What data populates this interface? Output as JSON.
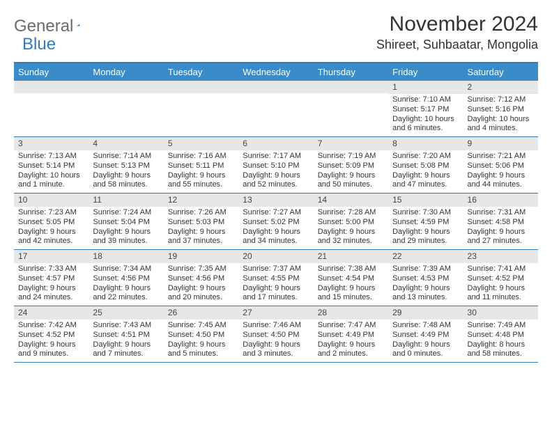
{
  "logo": {
    "text_gray": "General",
    "text_blue": "Blue",
    "triangle_color": "#2f7bbf"
  },
  "title": "November 2024",
  "location": "Shireet, Suhbaatar, Mongolia",
  "colors": {
    "header_bg": "#3b8bc9",
    "border": "#2f7bbf",
    "daynum_bg": "#e7e7e7",
    "text": "#333333",
    "logo_gray": "#6b6b6b"
  },
  "day_headers": [
    "Sunday",
    "Monday",
    "Tuesday",
    "Wednesday",
    "Thursday",
    "Friday",
    "Saturday"
  ],
  "weeks": [
    [
      {
        "num": "",
        "sunrise": "",
        "sunset": "",
        "daylight": ""
      },
      {
        "num": "",
        "sunrise": "",
        "sunset": "",
        "daylight": ""
      },
      {
        "num": "",
        "sunrise": "",
        "sunset": "",
        "daylight": ""
      },
      {
        "num": "",
        "sunrise": "",
        "sunset": "",
        "daylight": ""
      },
      {
        "num": "",
        "sunrise": "",
        "sunset": "",
        "daylight": ""
      },
      {
        "num": "1",
        "sunrise": "Sunrise: 7:10 AM",
        "sunset": "Sunset: 5:17 PM",
        "daylight": "Daylight: 10 hours and 6 minutes."
      },
      {
        "num": "2",
        "sunrise": "Sunrise: 7:12 AM",
        "sunset": "Sunset: 5:16 PM",
        "daylight": "Daylight: 10 hours and 4 minutes."
      }
    ],
    [
      {
        "num": "3",
        "sunrise": "Sunrise: 7:13 AM",
        "sunset": "Sunset: 5:14 PM",
        "daylight": "Daylight: 10 hours and 1 minute."
      },
      {
        "num": "4",
        "sunrise": "Sunrise: 7:14 AM",
        "sunset": "Sunset: 5:13 PM",
        "daylight": "Daylight: 9 hours and 58 minutes."
      },
      {
        "num": "5",
        "sunrise": "Sunrise: 7:16 AM",
        "sunset": "Sunset: 5:11 PM",
        "daylight": "Daylight: 9 hours and 55 minutes."
      },
      {
        "num": "6",
        "sunrise": "Sunrise: 7:17 AM",
        "sunset": "Sunset: 5:10 PM",
        "daylight": "Daylight: 9 hours and 52 minutes."
      },
      {
        "num": "7",
        "sunrise": "Sunrise: 7:19 AM",
        "sunset": "Sunset: 5:09 PM",
        "daylight": "Daylight: 9 hours and 50 minutes."
      },
      {
        "num": "8",
        "sunrise": "Sunrise: 7:20 AM",
        "sunset": "Sunset: 5:08 PM",
        "daylight": "Daylight: 9 hours and 47 minutes."
      },
      {
        "num": "9",
        "sunrise": "Sunrise: 7:21 AM",
        "sunset": "Sunset: 5:06 PM",
        "daylight": "Daylight: 9 hours and 44 minutes."
      }
    ],
    [
      {
        "num": "10",
        "sunrise": "Sunrise: 7:23 AM",
        "sunset": "Sunset: 5:05 PM",
        "daylight": "Daylight: 9 hours and 42 minutes."
      },
      {
        "num": "11",
        "sunrise": "Sunrise: 7:24 AM",
        "sunset": "Sunset: 5:04 PM",
        "daylight": "Daylight: 9 hours and 39 minutes."
      },
      {
        "num": "12",
        "sunrise": "Sunrise: 7:26 AM",
        "sunset": "Sunset: 5:03 PM",
        "daylight": "Daylight: 9 hours and 37 minutes."
      },
      {
        "num": "13",
        "sunrise": "Sunrise: 7:27 AM",
        "sunset": "Sunset: 5:02 PM",
        "daylight": "Daylight: 9 hours and 34 minutes."
      },
      {
        "num": "14",
        "sunrise": "Sunrise: 7:28 AM",
        "sunset": "Sunset: 5:00 PM",
        "daylight": "Daylight: 9 hours and 32 minutes."
      },
      {
        "num": "15",
        "sunrise": "Sunrise: 7:30 AM",
        "sunset": "Sunset: 4:59 PM",
        "daylight": "Daylight: 9 hours and 29 minutes."
      },
      {
        "num": "16",
        "sunrise": "Sunrise: 7:31 AM",
        "sunset": "Sunset: 4:58 PM",
        "daylight": "Daylight: 9 hours and 27 minutes."
      }
    ],
    [
      {
        "num": "17",
        "sunrise": "Sunrise: 7:33 AM",
        "sunset": "Sunset: 4:57 PM",
        "daylight": "Daylight: 9 hours and 24 minutes."
      },
      {
        "num": "18",
        "sunrise": "Sunrise: 7:34 AM",
        "sunset": "Sunset: 4:56 PM",
        "daylight": "Daylight: 9 hours and 22 minutes."
      },
      {
        "num": "19",
        "sunrise": "Sunrise: 7:35 AM",
        "sunset": "Sunset: 4:56 PM",
        "daylight": "Daylight: 9 hours and 20 minutes."
      },
      {
        "num": "20",
        "sunrise": "Sunrise: 7:37 AM",
        "sunset": "Sunset: 4:55 PM",
        "daylight": "Daylight: 9 hours and 17 minutes."
      },
      {
        "num": "21",
        "sunrise": "Sunrise: 7:38 AM",
        "sunset": "Sunset: 4:54 PM",
        "daylight": "Daylight: 9 hours and 15 minutes."
      },
      {
        "num": "22",
        "sunrise": "Sunrise: 7:39 AM",
        "sunset": "Sunset: 4:53 PM",
        "daylight": "Daylight: 9 hours and 13 minutes."
      },
      {
        "num": "23",
        "sunrise": "Sunrise: 7:41 AM",
        "sunset": "Sunset: 4:52 PM",
        "daylight": "Daylight: 9 hours and 11 minutes."
      }
    ],
    [
      {
        "num": "24",
        "sunrise": "Sunrise: 7:42 AM",
        "sunset": "Sunset: 4:52 PM",
        "daylight": "Daylight: 9 hours and 9 minutes."
      },
      {
        "num": "25",
        "sunrise": "Sunrise: 7:43 AM",
        "sunset": "Sunset: 4:51 PM",
        "daylight": "Daylight: 9 hours and 7 minutes."
      },
      {
        "num": "26",
        "sunrise": "Sunrise: 7:45 AM",
        "sunset": "Sunset: 4:50 PM",
        "daylight": "Daylight: 9 hours and 5 minutes."
      },
      {
        "num": "27",
        "sunrise": "Sunrise: 7:46 AM",
        "sunset": "Sunset: 4:50 PM",
        "daylight": "Daylight: 9 hours and 3 minutes."
      },
      {
        "num": "28",
        "sunrise": "Sunrise: 7:47 AM",
        "sunset": "Sunset: 4:49 PM",
        "daylight": "Daylight: 9 hours and 2 minutes."
      },
      {
        "num": "29",
        "sunrise": "Sunrise: 7:48 AM",
        "sunset": "Sunset: 4:49 PM",
        "daylight": "Daylight: 9 hours and 0 minutes."
      },
      {
        "num": "30",
        "sunrise": "Sunrise: 7:49 AM",
        "sunset": "Sunset: 4:48 PM",
        "daylight": "Daylight: 8 hours and 58 minutes."
      }
    ]
  ]
}
